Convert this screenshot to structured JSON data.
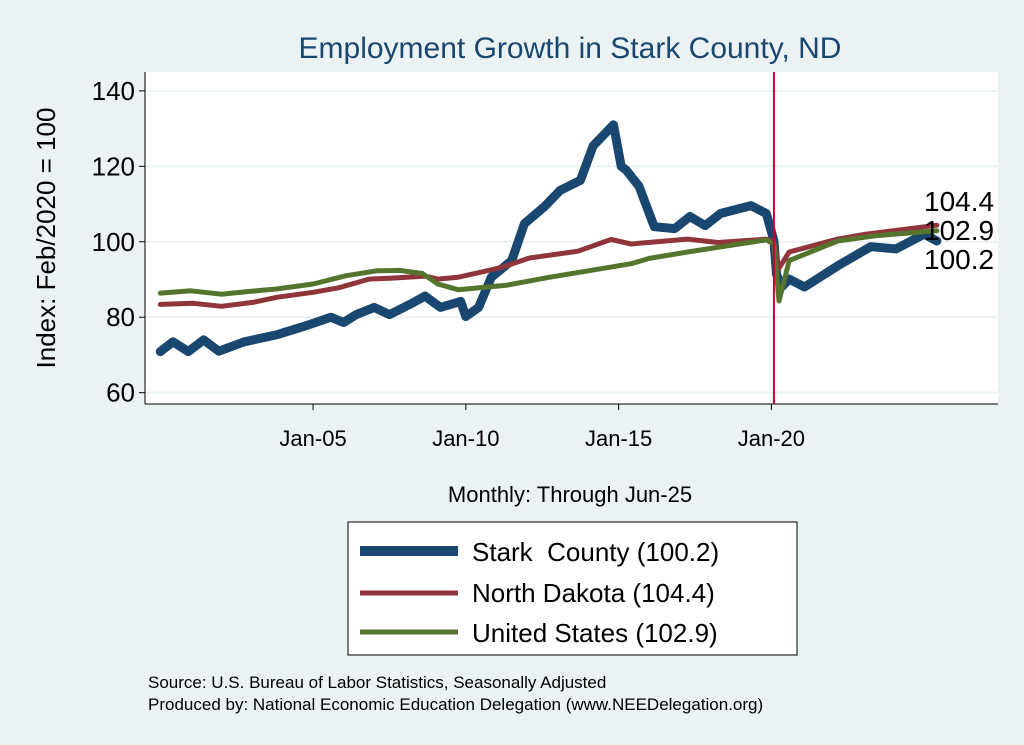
{
  "chart_data": {
    "type": "line",
    "title": "Employment Growth in Stark  County, ND",
    "xlabel": "Monthly: Through Jun-25",
    "ylabel": "Index: Feb/2020 = 100",
    "ylim": [
      57,
      145
    ],
    "xlim": [
      "1999-07",
      "2027-06"
    ],
    "yticks": [
      60,
      80,
      100,
      120,
      140
    ],
    "xticks": [
      {
        "date": "2005-01",
        "label": "Jan-05"
      },
      {
        "date": "2010-01",
        "label": "Jan-10"
      },
      {
        "date": "2015-01",
        "label": "Jan-15"
      },
      {
        "date": "2020-01",
        "label": "Jan-20"
      }
    ],
    "grid": true,
    "reference_line": {
      "date": "2020-02",
      "color": "#c10534"
    },
    "legend_position": "bottom",
    "end_labels": [
      "104.4",
      "102.9",
      "100.2"
    ],
    "series": [
      {
        "name": "Stark  County (100.2)",
        "color": "#1a476f",
        "points": [
          [
            "2000-01",
            70.9
          ],
          [
            "2000-06",
            73.5
          ],
          [
            "2000-12",
            70.9
          ],
          [
            "2001-06",
            74
          ],
          [
            "2001-12",
            71
          ],
          [
            "2002-10",
            73.5
          ],
          [
            "2003-11",
            75.4
          ],
          [
            "2004-09",
            77.5
          ],
          [
            "2005-08",
            80
          ],
          [
            "2006-01",
            78.6
          ],
          [
            "2006-06",
            80.7
          ],
          [
            "2007-01",
            82.6
          ],
          [
            "2007-07",
            80.7
          ],
          [
            "2008-03",
            83.4
          ],
          [
            "2008-09",
            85.6
          ],
          [
            "2009-03",
            82.6
          ],
          [
            "2009-11",
            84.2
          ],
          [
            "2010-01",
            80.2
          ],
          [
            "2010-06",
            82.6
          ],
          [
            "2010-11",
            90.6
          ],
          [
            "2011-07",
            95
          ],
          [
            "2011-12",
            104.8
          ],
          [
            "2012-08",
            109.4
          ],
          [
            "2013-02",
            113.6
          ],
          [
            "2013-10",
            116.3
          ],
          [
            "2014-03",
            125.4
          ],
          [
            "2014-11",
            131
          ],
          [
            "2015-02",
            120
          ],
          [
            "2015-04",
            119
          ],
          [
            "2015-09",
            114.7
          ],
          [
            "2016-03",
            104
          ],
          [
            "2016-11",
            103.5
          ],
          [
            "2017-05",
            106.7
          ],
          [
            "2017-11",
            104.3
          ],
          [
            "2018-05",
            107.5
          ],
          [
            "2019-05",
            109.6
          ],
          [
            "2019-11",
            107.5
          ],
          [
            "2020-02",
            100.3
          ],
          [
            "2020-03",
            91.4
          ],
          [
            "2020-05",
            88
          ],
          [
            "2020-08",
            90.1
          ],
          [
            "2021-02",
            88
          ],
          [
            "2022-03",
            93.6
          ],
          [
            "2023-04",
            98.7
          ],
          [
            "2024-02",
            98.1
          ],
          [
            "2025-01",
            102
          ],
          [
            "2025-06",
            100.2
          ]
        ]
      },
      {
        "name": "North Dakota (104.4)",
        "color": "#90353b",
        "points": [
          [
            "2000-01",
            83.4
          ],
          [
            "2001-02",
            83.7
          ],
          [
            "2002-01",
            82.9
          ],
          [
            "2003-02",
            84
          ],
          [
            "2003-11",
            85.3
          ],
          [
            "2005-01",
            86.6
          ],
          [
            "2005-11",
            87.8
          ],
          [
            "2006-11",
            90.1
          ],
          [
            "2007-09",
            90.4
          ],
          [
            "2008-09",
            90.9
          ],
          [
            "2009-02",
            90.1
          ],
          [
            "2009-10",
            90.6
          ],
          [
            "2010-06",
            91.8
          ],
          [
            "2011-03",
            93.2
          ],
          [
            "2012-02",
            95.7
          ],
          [
            "2013-09",
            97.5
          ],
          [
            "2014-10",
            100.6
          ],
          [
            "2015-06",
            99.4
          ],
          [
            "2017-04",
            100.7
          ],
          [
            "2018-04",
            99.8
          ],
          [
            "2019-11",
            100.7
          ],
          [
            "2020-02",
            100
          ],
          [
            "2020-04",
            93
          ],
          [
            "2020-08",
            97.3
          ],
          [
            "2022-03",
            100.7
          ],
          [
            "2023-02",
            102
          ],
          [
            "2025-06",
            104.4
          ]
        ]
      },
      {
        "name": "United States (102.9)",
        "color": "#55752f",
        "points": [
          [
            "2000-01",
            86.4
          ],
          [
            "2001-01",
            87
          ],
          [
            "2002-01",
            86.1
          ],
          [
            "2002-10",
            86.7
          ],
          [
            "2003-11",
            87.5
          ],
          [
            "2005-01",
            88.8
          ],
          [
            "2006-02",
            91
          ],
          [
            "2007-02",
            92.3
          ],
          [
            "2007-11",
            92.4
          ],
          [
            "2008-08",
            91.6
          ],
          [
            "2009-02",
            88.8
          ],
          [
            "2009-10",
            87.3
          ],
          [
            "2011-05",
            88.5
          ],
          [
            "2012-10",
            90.6
          ],
          [
            "2015-06",
            94.2
          ],
          [
            "2016-01",
            95.6
          ],
          [
            "2017-05",
            97.4
          ],
          [
            "2019-11",
            100.5
          ],
          [
            "2020-02",
            99.4
          ],
          [
            "2020-04",
            84.3
          ],
          [
            "2020-08",
            95
          ],
          [
            "2022-03",
            100.2
          ],
          [
            "2023-06",
            101.6
          ],
          [
            "2025-06",
            102.9
          ]
        ]
      }
    ]
  },
  "footer": {
    "source": "Source: U.S. Bureau of Labor Statistics, Seasonally Adjusted",
    "produced": "Produced by: National Economic Education Delegation (www.NEEDelegation.org)"
  }
}
